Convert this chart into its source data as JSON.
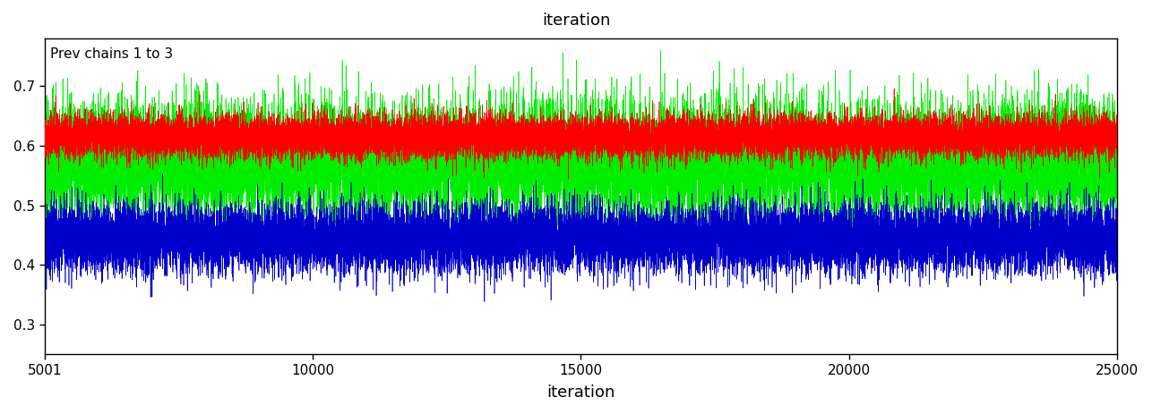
{
  "title_top": "iteration",
  "xlabel": "iteration",
  "ylabel": "",
  "annotation": "Prev chains 1 to 3",
  "xlim": [
    5001,
    25000
  ],
  "ylim": [
    0.25,
    0.78
  ],
  "yticks": [
    0.3,
    0.4,
    0.5,
    0.6,
    0.7
  ],
  "xticks": [
    5001,
    10000,
    15000,
    20000,
    25000
  ],
  "xtick_labels": [
    "5001",
    "10000",
    "15000",
    "20000",
    "25000"
  ],
  "chain1_color": "#FF0000",
  "chain2_color": "#00EE00",
  "chain3_color": "#0000CC",
  "chain1_mean": 0.615,
  "chain1_std": 0.018,
  "chain2_mean": 0.575,
  "chain2_std": 0.048,
  "chain3_mean": 0.445,
  "chain3_std": 0.028,
  "n_samples": 20000,
  "seed": 42,
  "background_color": "#FFFFFF",
  "linewidth": 0.45,
  "figsize": [
    12.86,
    4.63
  ],
  "dpi": 100
}
